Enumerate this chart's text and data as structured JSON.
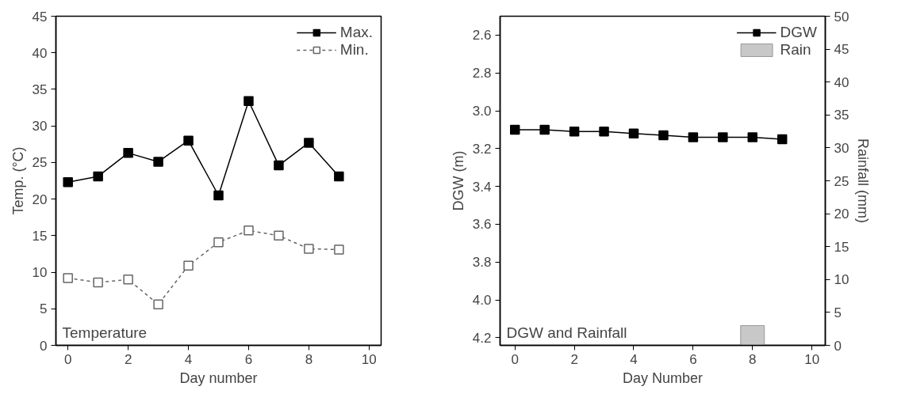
{
  "chart_data": [
    {
      "type": "line",
      "xlabel": "Day number",
      "ylabel": "Temp. (°C)",
      "x": [
        0,
        1,
        2,
        3,
        4,
        5,
        6,
        7,
        8,
        9
      ],
      "series": [
        {
          "name": "Max.",
          "color": "#000000",
          "values": [
            22.3,
            23.1,
            26.3,
            25.1,
            28.0,
            20.5,
            33.4,
            24.6,
            27.7,
            23.1
          ],
          "line_style": "solid"
        },
        {
          "name": "Min.",
          "color": "#666666",
          "values": [
            9.2,
            8.6,
            9.0,
            5.6,
            10.9,
            14.1,
            15.7,
            15.0,
            13.2,
            13.1
          ],
          "line_style": "dashed"
        }
      ],
      "xlim": [
        -0.4,
        10.4
      ],
      "xticks": [
        0,
        2,
        4,
        6,
        8,
        10
      ],
      "ylim": [
        0,
        45
      ],
      "yticks": [
        0,
        5,
        10,
        15,
        20,
        25,
        30,
        35,
        40,
        45
      ],
      "annotations": [
        "Temperature"
      ],
      "marker": "square",
      "grid": false,
      "legend": "top right"
    },
    {
      "type": "line",
      "xlabel": "Day Number",
      "ylabel": "DGW (m)",
      "y2label": "Rainfall (mm)",
      "x": [
        0,
        1,
        2,
        3,
        4,
        5,
        6,
        7,
        8,
        9
      ],
      "series": [
        {
          "name": "DGW",
          "color": "#000000",
          "values": [
            3.1,
            3.1,
            3.11,
            3.11,
            3.12,
            3.13,
            3.14,
            3.14,
            3.14,
            3.15
          ]
        },
        {
          "name": "Rain",
          "type": "bar",
          "color": "#c8c8c8",
          "x": [
            8
          ],
          "values": [
            3
          ],
          "axis": "y2"
        }
      ],
      "xlim": [
        -0.5,
        10.45
      ],
      "xticks": [
        0,
        2,
        4,
        6,
        8,
        10
      ],
      "ylim": [
        4.24,
        2.5
      ],
      "yticks": [
        {
          "value": 2.6,
          "label": "2.6"
        },
        {
          "value": 2.8,
          "label": "2.8"
        },
        {
          "value": 3.0,
          "label": "3.0"
        },
        {
          "value": 3.2,
          "label": "3.2"
        },
        {
          "value": 3.4,
          "label": "3.4"
        },
        {
          "value": 3.6,
          "label": "3.6"
        },
        {
          "value": 3.8,
          "label": "3.8"
        },
        {
          "value": 4.0,
          "label": "4.0"
        },
        {
          "value": 4.2,
          "label": "4.2"
        }
      ],
      "y2lim": [
        0,
        50
      ],
      "y2ticks": [
        0,
        5,
        10,
        15,
        20,
        25,
        30,
        35,
        40,
        45,
        50
      ],
      "annotations": [
        "DGW and Rainfall"
      ],
      "marker": "square",
      "grid": false,
      "legend": "top right"
    }
  ]
}
